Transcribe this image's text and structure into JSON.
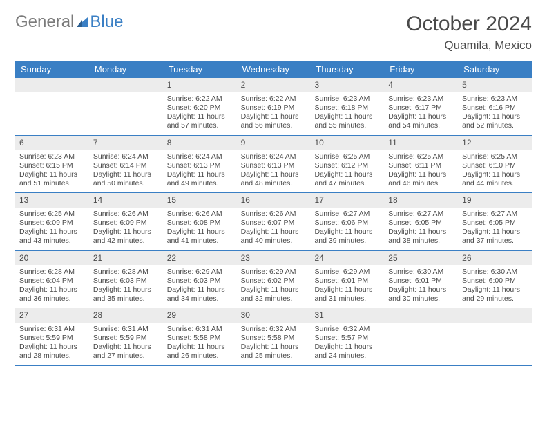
{
  "logo": {
    "text1": "General",
    "text2": "Blue"
  },
  "title": "October 2024",
  "location": "Quamila, Mexico",
  "colors": {
    "brand_blue": "#3a7fc4",
    "header_text": "#ffffff",
    "daynum_bg": "#ececec",
    "text": "#4a4a4a",
    "logo_grey": "#7a7a7a"
  },
  "day_headers": [
    "Sunday",
    "Monday",
    "Tuesday",
    "Wednesday",
    "Thursday",
    "Friday",
    "Saturday"
  ],
  "weeks": [
    [
      {
        "n": "",
        "sr": "",
        "ss": "",
        "dl": ""
      },
      {
        "n": "",
        "sr": "",
        "ss": "",
        "dl": ""
      },
      {
        "n": "1",
        "sr": "Sunrise: 6:22 AM",
        "ss": "Sunset: 6:20 PM",
        "dl": "Daylight: 11 hours and 57 minutes."
      },
      {
        "n": "2",
        "sr": "Sunrise: 6:22 AM",
        "ss": "Sunset: 6:19 PM",
        "dl": "Daylight: 11 hours and 56 minutes."
      },
      {
        "n": "3",
        "sr": "Sunrise: 6:23 AM",
        "ss": "Sunset: 6:18 PM",
        "dl": "Daylight: 11 hours and 55 minutes."
      },
      {
        "n": "4",
        "sr": "Sunrise: 6:23 AM",
        "ss": "Sunset: 6:17 PM",
        "dl": "Daylight: 11 hours and 54 minutes."
      },
      {
        "n": "5",
        "sr": "Sunrise: 6:23 AM",
        "ss": "Sunset: 6:16 PM",
        "dl": "Daylight: 11 hours and 52 minutes."
      }
    ],
    [
      {
        "n": "6",
        "sr": "Sunrise: 6:23 AM",
        "ss": "Sunset: 6:15 PM",
        "dl": "Daylight: 11 hours and 51 minutes."
      },
      {
        "n": "7",
        "sr": "Sunrise: 6:24 AM",
        "ss": "Sunset: 6:14 PM",
        "dl": "Daylight: 11 hours and 50 minutes."
      },
      {
        "n": "8",
        "sr": "Sunrise: 6:24 AM",
        "ss": "Sunset: 6:13 PM",
        "dl": "Daylight: 11 hours and 49 minutes."
      },
      {
        "n": "9",
        "sr": "Sunrise: 6:24 AM",
        "ss": "Sunset: 6:13 PM",
        "dl": "Daylight: 11 hours and 48 minutes."
      },
      {
        "n": "10",
        "sr": "Sunrise: 6:25 AM",
        "ss": "Sunset: 6:12 PM",
        "dl": "Daylight: 11 hours and 47 minutes."
      },
      {
        "n": "11",
        "sr": "Sunrise: 6:25 AM",
        "ss": "Sunset: 6:11 PM",
        "dl": "Daylight: 11 hours and 46 minutes."
      },
      {
        "n": "12",
        "sr": "Sunrise: 6:25 AM",
        "ss": "Sunset: 6:10 PM",
        "dl": "Daylight: 11 hours and 44 minutes."
      }
    ],
    [
      {
        "n": "13",
        "sr": "Sunrise: 6:25 AM",
        "ss": "Sunset: 6:09 PM",
        "dl": "Daylight: 11 hours and 43 minutes."
      },
      {
        "n": "14",
        "sr": "Sunrise: 6:26 AM",
        "ss": "Sunset: 6:09 PM",
        "dl": "Daylight: 11 hours and 42 minutes."
      },
      {
        "n": "15",
        "sr": "Sunrise: 6:26 AM",
        "ss": "Sunset: 6:08 PM",
        "dl": "Daylight: 11 hours and 41 minutes."
      },
      {
        "n": "16",
        "sr": "Sunrise: 6:26 AM",
        "ss": "Sunset: 6:07 PM",
        "dl": "Daylight: 11 hours and 40 minutes."
      },
      {
        "n": "17",
        "sr": "Sunrise: 6:27 AM",
        "ss": "Sunset: 6:06 PM",
        "dl": "Daylight: 11 hours and 39 minutes."
      },
      {
        "n": "18",
        "sr": "Sunrise: 6:27 AM",
        "ss": "Sunset: 6:05 PM",
        "dl": "Daylight: 11 hours and 38 minutes."
      },
      {
        "n": "19",
        "sr": "Sunrise: 6:27 AM",
        "ss": "Sunset: 6:05 PM",
        "dl": "Daylight: 11 hours and 37 minutes."
      }
    ],
    [
      {
        "n": "20",
        "sr": "Sunrise: 6:28 AM",
        "ss": "Sunset: 6:04 PM",
        "dl": "Daylight: 11 hours and 36 minutes."
      },
      {
        "n": "21",
        "sr": "Sunrise: 6:28 AM",
        "ss": "Sunset: 6:03 PM",
        "dl": "Daylight: 11 hours and 35 minutes."
      },
      {
        "n": "22",
        "sr": "Sunrise: 6:29 AM",
        "ss": "Sunset: 6:03 PM",
        "dl": "Daylight: 11 hours and 34 minutes."
      },
      {
        "n": "23",
        "sr": "Sunrise: 6:29 AM",
        "ss": "Sunset: 6:02 PM",
        "dl": "Daylight: 11 hours and 32 minutes."
      },
      {
        "n": "24",
        "sr": "Sunrise: 6:29 AM",
        "ss": "Sunset: 6:01 PM",
        "dl": "Daylight: 11 hours and 31 minutes."
      },
      {
        "n": "25",
        "sr": "Sunrise: 6:30 AM",
        "ss": "Sunset: 6:01 PM",
        "dl": "Daylight: 11 hours and 30 minutes."
      },
      {
        "n": "26",
        "sr": "Sunrise: 6:30 AM",
        "ss": "Sunset: 6:00 PM",
        "dl": "Daylight: 11 hours and 29 minutes."
      }
    ],
    [
      {
        "n": "27",
        "sr": "Sunrise: 6:31 AM",
        "ss": "Sunset: 5:59 PM",
        "dl": "Daylight: 11 hours and 28 minutes."
      },
      {
        "n": "28",
        "sr": "Sunrise: 6:31 AM",
        "ss": "Sunset: 5:59 PM",
        "dl": "Daylight: 11 hours and 27 minutes."
      },
      {
        "n": "29",
        "sr": "Sunrise: 6:31 AM",
        "ss": "Sunset: 5:58 PM",
        "dl": "Daylight: 11 hours and 26 minutes."
      },
      {
        "n": "30",
        "sr": "Sunrise: 6:32 AM",
        "ss": "Sunset: 5:58 PM",
        "dl": "Daylight: 11 hours and 25 minutes."
      },
      {
        "n": "31",
        "sr": "Sunrise: 6:32 AM",
        "ss": "Sunset: 5:57 PM",
        "dl": "Daylight: 11 hours and 24 minutes."
      },
      {
        "n": "",
        "sr": "",
        "ss": "",
        "dl": ""
      },
      {
        "n": "",
        "sr": "",
        "ss": "",
        "dl": ""
      }
    ]
  ]
}
